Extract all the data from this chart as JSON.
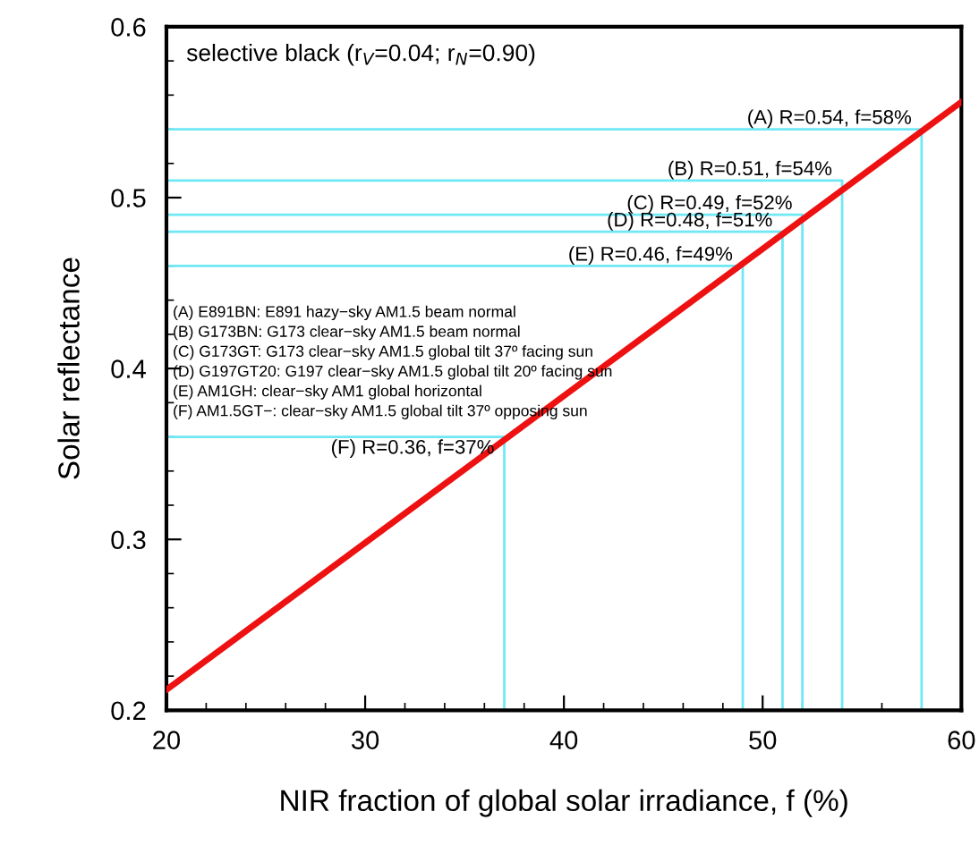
{
  "chart_data": {
    "type": "line",
    "xlabel": "NIR fraction of global solar irradiance, f (%)",
    "ylabel": "Solar reflectance",
    "series": [
      {
        "x": [
          20,
          60
        ],
        "values": [
          0.212,
          0.556
        ],
        "color": "#ee1111"
      },
      {
        "x": [
          20,
          58,
          58
        ],
        "values": [
          0.54,
          0.54,
          0.2
        ],
        "color": "#6fe8f5"
      },
      {
        "x": [
          20,
          54,
          54
        ],
        "values": [
          0.51,
          0.51,
          0.2
        ],
        "color": "#6fe8f5"
      },
      {
        "x": [
          20,
          52,
          52
        ],
        "values": [
          0.49,
          0.49,
          0.2
        ],
        "color": "#6fe8f5"
      },
      {
        "x": [
          20,
          51,
          51
        ],
        "values": [
          0.48,
          0.48,
          0.2
        ],
        "color": "#6fe8f5"
      },
      {
        "x": [
          20,
          49,
          49
        ],
        "values": [
          0.46,
          0.46,
          0.2
        ],
        "color": "#6fe8f5"
      },
      {
        "x": [
          20,
          37,
          37
        ],
        "values": [
          0.36,
          0.36,
          0.2
        ],
        "color": "#6fe8f5"
      }
    ],
    "xlim": [
      20,
      60
    ],
    "ylim": [
      0.2,
      0.6
    ],
    "xticks": [
      20,
      30,
      40,
      50,
      60
    ],
    "yticks": [
      0.2,
      0.3,
      0.4,
      0.5,
      0.6
    ],
    "grid": false,
    "legend": false,
    "marker": "none",
    "line_style": "solid",
    "annotations": [
      "selective black (r$_{V}$=0.04; r$_{N}$=0.90)",
      "(A) E891BN: E891 hazy−sky AM1.5 beam normal",
      "(B) G173BN: G173 clear−sky AM1.5 beam normal",
      "(C) G173GT: G173 clear−sky AM1.5 global tilt 37º facing sun",
      "(D) G197GT20: G197 clear−sky AM1.5 global tilt 20º facing sun",
      "(E) AM1GH: clear−sky AM1 global horizontal",
      "(F) AM1.5GT−: clear−sky AM1.5 global tilt 37º opposing sun",
      {
        "text": "(A) R=0.54, f=58%",
        "x": 58,
        "y": 0.54
      },
      {
        "text": "(B) R=0.51, f=54%",
        "x": 54,
        "y": 0.51
      },
      {
        "text": "(C) R=0.49, f=52%",
        "x": 52,
        "y": 0.49
      },
      {
        "text": "(D) R=0.48, f=51%",
        "x": 51,
        "y": 0.48
      },
      {
        "text": "(E) R=0.46, f=49%",
        "x": 49,
        "y": 0.46
      },
      {
        "text": "(F) R=0.36, f=37%",
        "x": 37,
        "y": 0.36
      }
    ]
  }
}
